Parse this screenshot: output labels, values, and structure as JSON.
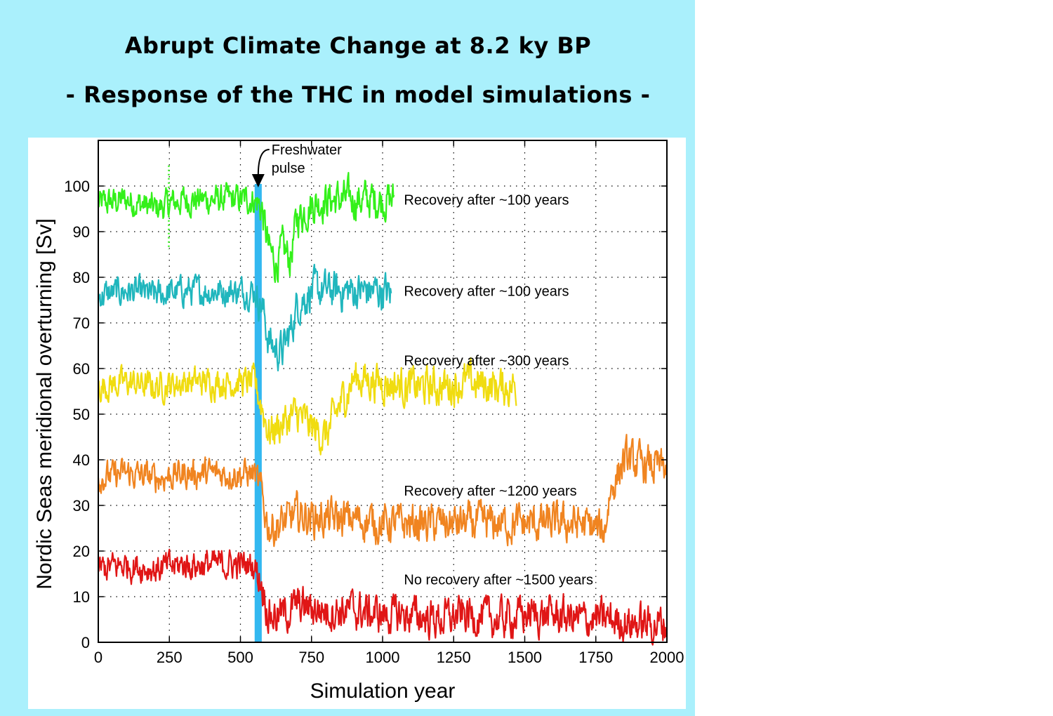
{
  "titles": {
    "line1": "Abrupt Climate Change at 8.2 ky BP",
    "line2": "- Response of the THC in model simulations -"
  },
  "chart_data": {
    "type": "line",
    "title": "",
    "xlabel": "Simulation year",
    "ylabel": "Nordic Seas meridional overturning  [Sv]",
    "xlim": [
      0,
      2000
    ],
    "ylim": [
      0,
      110
    ],
    "xticks": [
      0,
      250,
      500,
      750,
      1000,
      1250,
      1500,
      1750,
      2000
    ],
    "yticks": [
      0,
      10,
      20,
      30,
      40,
      50,
      60,
      70,
      80,
      90,
      100
    ],
    "grid": true,
    "freshwater_pulse": {
      "label_lines": [
        "Freshwater",
        "pulse"
      ],
      "x_start": 550,
      "x_end": 575,
      "color": "#33b8f0"
    },
    "series": [
      {
        "color": "#33f01a",
        "annotation": "Recovery after ~100 years",
        "x": [
          0,
          100,
          200,
          300,
          400,
          500,
          550,
          575,
          600,
          625,
          650,
          675,
          700,
          750,
          800,
          900,
          1000,
          1040
        ],
        "y": [
          96,
          97,
          95,
          97,
          97,
          97,
          97,
          95,
          86,
          83,
          86,
          84,
          93,
          96,
          97,
          97,
          97,
          97
        ]
      },
      {
        "color": "#20b6bd",
        "annotation": "Recovery after ~100 years",
        "x": [
          0,
          100,
          200,
          300,
          400,
          500,
          550,
          575,
          600,
          625,
          650,
          675,
          700,
          750,
          800,
          900,
          1000,
          1030
        ],
        "y": [
          76,
          77,
          76,
          77,
          77,
          77,
          77,
          74,
          66,
          64,
          64,
          68,
          74,
          77,
          77,
          77,
          77,
          76
        ]
      },
      {
        "color": "#f0dc10",
        "annotation": "Recovery after ~300 years",
        "x": [
          0,
          100,
          200,
          300,
          400,
          500,
          550,
          575,
          600,
          650,
          700,
          750,
          800,
          850,
          900,
          1000,
          1100,
          1200,
          1300,
          1400,
          1470
        ],
        "y": [
          56,
          57,
          56,
          57,
          57,
          57,
          57,
          52,
          46,
          48,
          50,
          47,
          45,
          52,
          58,
          57,
          56,
          56,
          57,
          56,
          56
        ]
      },
      {
        "color": "#f08420",
        "annotation": "Recovery after ~1200 years",
        "x": [
          0,
          100,
          200,
          300,
          400,
          500,
          550,
          575,
          600,
          650,
          700,
          800,
          900,
          1000,
          1100,
          1200,
          1300,
          1400,
          1500,
          1600,
          1700,
          1780,
          1800,
          1850,
          1900,
          2000
        ],
        "y": [
          36,
          37,
          36,
          37,
          37,
          37,
          37,
          32,
          25,
          26,
          28,
          27,
          27,
          26,
          26,
          26,
          26,
          26,
          26,
          26,
          26,
          24,
          33,
          40,
          39,
          38
        ]
      },
      {
        "color": "#e01616",
        "annotation": "No recovery after ~1500 years",
        "x": [
          0,
          100,
          200,
          300,
          400,
          500,
          550,
          575,
          600,
          650,
          700,
          800,
          900,
          1000,
          1100,
          1200,
          1300,
          1400,
          1500,
          1600,
          1700,
          1800,
          1900,
          2000
        ],
        "y": [
          16,
          17,
          16,
          17,
          17,
          17,
          17,
          13,
          6,
          6,
          8,
          7,
          7,
          6,
          6,
          5,
          6,
          5,
          6,
          6,
          5,
          5,
          4,
          4
        ]
      }
    ],
    "annotations": [
      {
        "text": "Recovery after ~100 years",
        "x": 1075,
        "y": 97
      },
      {
        "text": "Recovery after ~100 years",
        "x": 1075,
        "y": 77
      },
      {
        "text": "Recovery after ~300 years",
        "x": 1075,
        "y": 61.8
      },
      {
        "text": "Recovery after ~1200 years",
        "x": 1075,
        "y": 33.2
      },
      {
        "text": "No recovery after ~1500 years",
        "x": 1075,
        "y": 13.8
      }
    ]
  }
}
